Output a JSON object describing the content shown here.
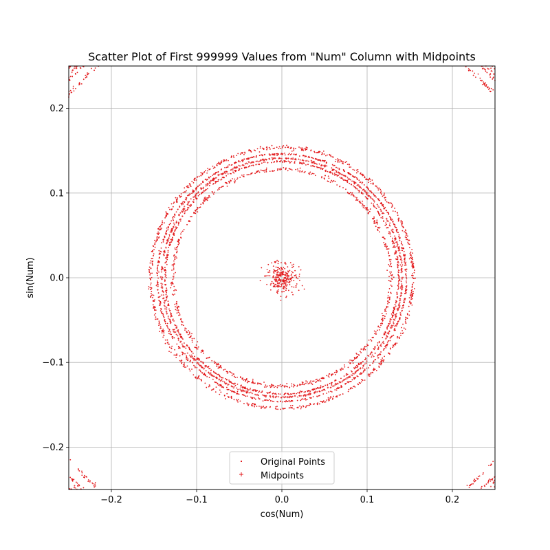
{
  "chart_data": {
    "type": "scatter",
    "title": "Scatter Plot of First 999999 Values from \"Num\" Column with Midpoints",
    "xlabel": "cos(Num)",
    "ylabel": "sin(Num)",
    "xlim": [
      -0.25,
      0.25
    ],
    "ylim": [
      -0.25,
      0.25
    ],
    "xticks": [
      -0.2,
      -0.1,
      0.0,
      0.1,
      0.2
    ],
    "yticks": [
      -0.2,
      -0.1,
      0.0,
      0.1,
      0.2
    ],
    "xtick_labels": [
      "−0.2",
      "−0.1",
      "0.0",
      "0.1",
      "0.2"
    ],
    "ytick_labels": [
      "−0.2",
      "−0.1",
      "0.0",
      "0.1",
      "0.2"
    ],
    "grid": true,
    "legend_position": "lower center",
    "series": [
      {
        "name": "Original Points",
        "color": "#e31a1c",
        "marker": "point",
        "rings": [
          {
            "center": [
              0,
              0
            ],
            "radius": 0.0045,
            "spread": 0.001
          },
          {
            "center": [
              0,
              0
            ],
            "radius": 0.011,
            "spread": 0.0008
          },
          {
            "center": [
              0,
              0
            ],
            "radius": 0.018,
            "spread": 0.004
          },
          {
            "center": [
              0,
              0
            ],
            "radius": 0.128,
            "spread": 0.0012
          },
          {
            "center": [
              0,
              0
            ],
            "radius": 0.137,
            "spread": 0.0006
          },
          {
            "center": [
              0,
              0
            ],
            "radius": 0.146,
            "spread": 0.0006
          },
          {
            "center": [
              0,
              0
            ],
            "radius": 0.154,
            "spread": 0.0012
          },
          {
            "center": [
              0,
              0
            ],
            "radius": 0.33,
            "spread": 0.0015
          },
          {
            "center": [
              0,
              0
            ],
            "radius": 0.342,
            "spread": 0.0008
          },
          {
            "center": [
              0,
              0
            ],
            "radius": 0.352,
            "spread": 0.0008
          },
          {
            "center": [
              0,
              0
            ],
            "radius": 0.362,
            "spread": 0.0015
          }
        ]
      },
      {
        "name": "Midpoints",
        "color": "#e31a1c",
        "marker": "plus",
        "rings": [
          {
            "center": [
              0,
              0
            ],
            "radius": 0.0075,
            "spread": 0.0008
          },
          {
            "center": [
              0,
              0
            ],
            "radius": 0.141,
            "spread": 0.0006
          },
          {
            "center": [
              0,
              0
            ],
            "radius": 0.347,
            "spread": 0.0008
          }
        ]
      }
    ]
  }
}
